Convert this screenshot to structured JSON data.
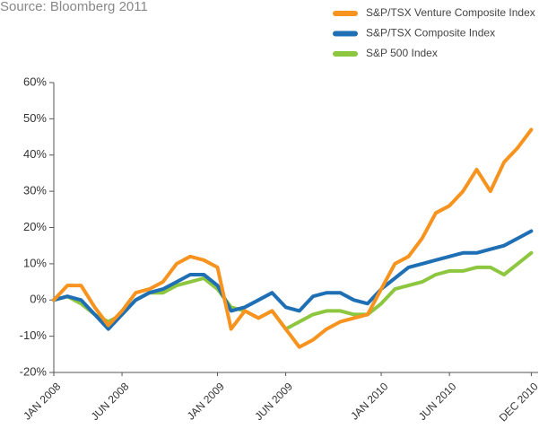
{
  "chart_data": {
    "type": "line",
    "subtitle": "Source: Bloomberg 2011",
    "x": [
      0,
      1,
      2,
      3,
      4,
      5,
      6,
      7,
      8,
      9,
      10,
      11,
      12,
      13,
      14,
      15,
      16,
      17,
      18,
      19,
      20,
      21,
      22,
      23,
      24,
      25,
      26,
      27,
      28,
      29,
      30,
      31,
      32,
      33,
      34,
      35
    ],
    "xlim": [
      0,
      35.5
    ],
    "xticks": [
      {
        "value": 0,
        "label": "JAN 2008"
      },
      {
        "value": 5,
        "label": "JUN 2008"
      },
      {
        "value": 12,
        "label": "JAN 2009"
      },
      {
        "value": 17,
        "label": "JUN 2009"
      },
      {
        "value": 24,
        "label": "JAN 2010"
      },
      {
        "value": 29,
        "label": "JUN 2010"
      },
      {
        "value": 35,
        "label": "DEC 2010"
      }
    ],
    "ylim": [
      -20,
      60
    ],
    "yticks": [
      {
        "value": -20,
        "label": "-20%"
      },
      {
        "value": -10,
        "label": "-10%"
      },
      {
        "value": 0,
        "label": "0%"
      },
      {
        "value": 10,
        "label": "10%"
      },
      {
        "value": 20,
        "label": "20%"
      },
      {
        "value": 30,
        "label": "30%"
      },
      {
        "value": 40,
        "label": "40%"
      },
      {
        "value": 50,
        "label": "50%"
      },
      {
        "value": 60,
        "label": "60%"
      }
    ],
    "grid": false,
    "legend": "top-right",
    "series": [
      {
        "name": "S&P/TSX Venture Composite Index",
        "color": "#f7931e",
        "values": [
          0,
          4,
          4,
          -2,
          -7,
          -3,
          2,
          3,
          5,
          10,
          12,
          11,
          9,
          -8,
          -3,
          -5,
          -3,
          -8,
          -13,
          -11,
          -8,
          -6,
          -5,
          -4,
          3,
          10,
          12,
          17,
          24,
          26,
          30,
          36,
          30,
          38,
          42,
          47
        ]
      },
      {
        "name": "S&P/TSX Composite Index",
        "color": "#1f6fb5",
        "values": [
          0,
          1,
          0,
          -4,
          -8,
          -4,
          0,
          2,
          3,
          5,
          7,
          7,
          4,
          -3,
          -2,
          0,
          2,
          -2,
          -3,
          1,
          2,
          2,
          0,
          -1,
          3,
          6,
          9,
          10,
          11,
          12,
          13,
          13,
          14,
          15,
          17,
          19
        ]
      },
      {
        "name": "S&P 500 Index",
        "color": "#8dc63f",
        "values": [
          0,
          1,
          -1,
          -4,
          -6,
          -4,
          0,
          2,
          2,
          4,
          5,
          6,
          3,
          -2,
          -3,
          -5,
          -3,
          -8,
          -6,
          -4,
          -3,
          -3,
          -4,
          -4,
          -1,
          3,
          4,
          5,
          7,
          8,
          8,
          9,
          9,
          7,
          10,
          13
        ]
      }
    ]
  }
}
